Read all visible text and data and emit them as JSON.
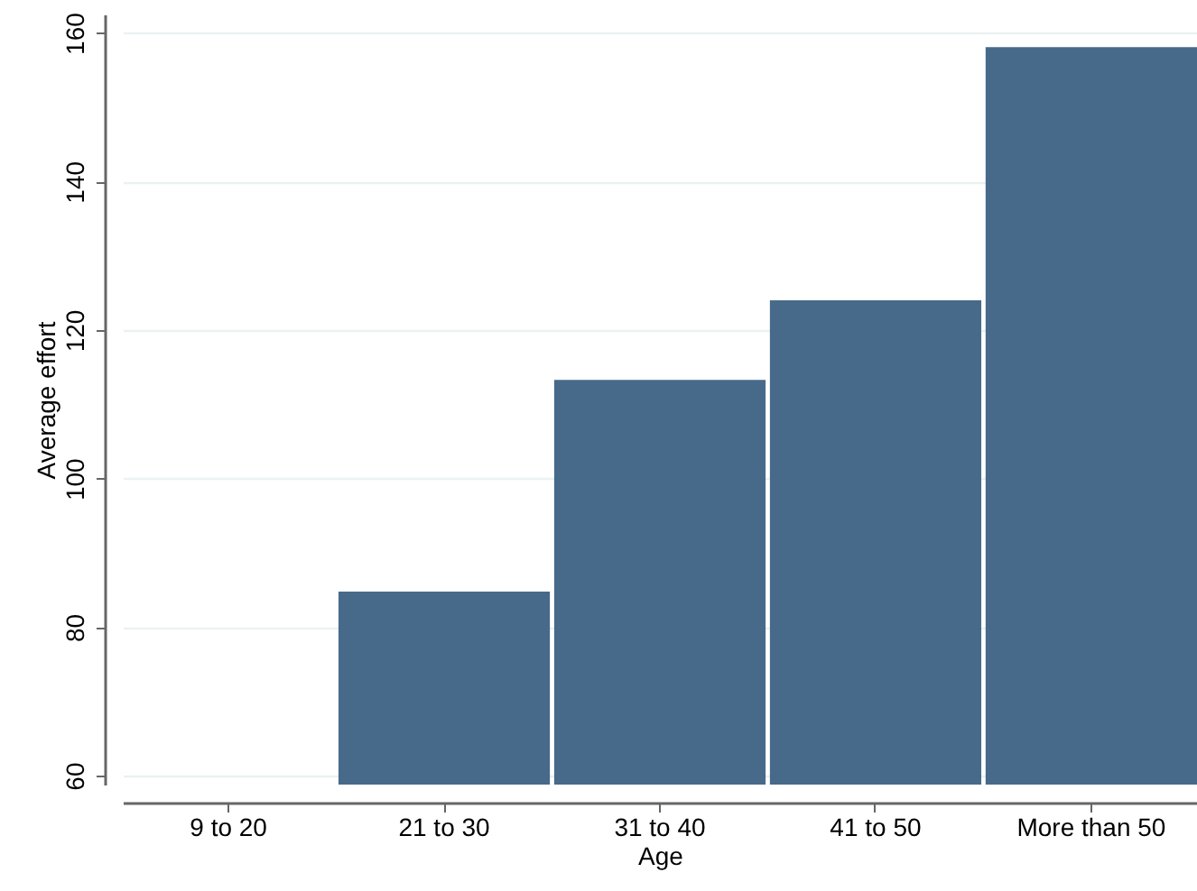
{
  "chart_data": {
    "type": "bar",
    "xlabel": "Age",
    "ylabel": "Average effort",
    "categories": [
      "9 to 20",
      "21 to 30",
      "31 to 40",
      "41 to 50",
      "More than 50"
    ],
    "values": [
      null,
      84.8,
      113.3,
      124.0,
      158.1
    ],
    "color": "#476a8a",
    "ylim": [
      58.8,
      162.5
    ],
    "yticks": [
      60,
      80,
      100,
      120,
      140,
      160
    ],
    "grid": "y"
  }
}
